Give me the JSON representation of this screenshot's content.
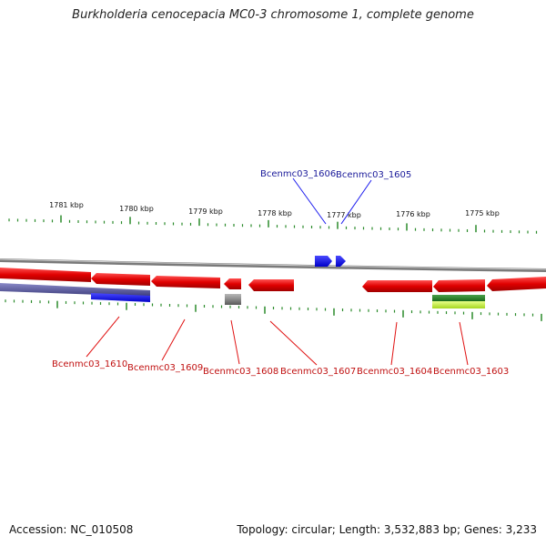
{
  "title": "Burkholderia cenocepacia MC0-3 chromosome 1, complete genome",
  "footer": {
    "accession": "Accession: NC_010508",
    "topology": "Topology: circular; Length: 3,532,883 bp; Genes: 3,233"
  },
  "ruler_labels": [
    "1781 kbp",
    "1780 kbp",
    "1779 kbp",
    "1778 kbp",
    "1777 kbp",
    "1776 kbp",
    "1775 kbp"
  ],
  "genes": [
    {
      "name": "Bcenmc03_1606",
      "strand": "+",
      "color": "#1a1aee"
    },
    {
      "name": "Bcenmc03_1605",
      "strand": "+",
      "color": "#1a1aee"
    },
    {
      "name": "Bcenmc03_1610",
      "strand": "-",
      "color": "#e01010"
    },
    {
      "name": "Bcenmc03_1609",
      "strand": "-",
      "color": "#e01010"
    },
    {
      "name": "Bcenmc03_1608",
      "strand": "-",
      "color": "#e01010"
    },
    {
      "name": "Bcenmc03_1607",
      "strand": "-",
      "color": "#e01010"
    },
    {
      "name": "Bcenmc03_1604",
      "strand": "-",
      "color": "#e01010"
    },
    {
      "name": "Bcenmc03_1603",
      "strand": "-",
      "color": "#e01010"
    }
  ],
  "colors": {
    "plus_strand": "#1a1aee",
    "minus_strand": "#e01010",
    "backbone": "#888888",
    "ticks": "#2a8a2a",
    "plus_label": "#1a1a9a",
    "minus_label": "#c01010"
  }
}
